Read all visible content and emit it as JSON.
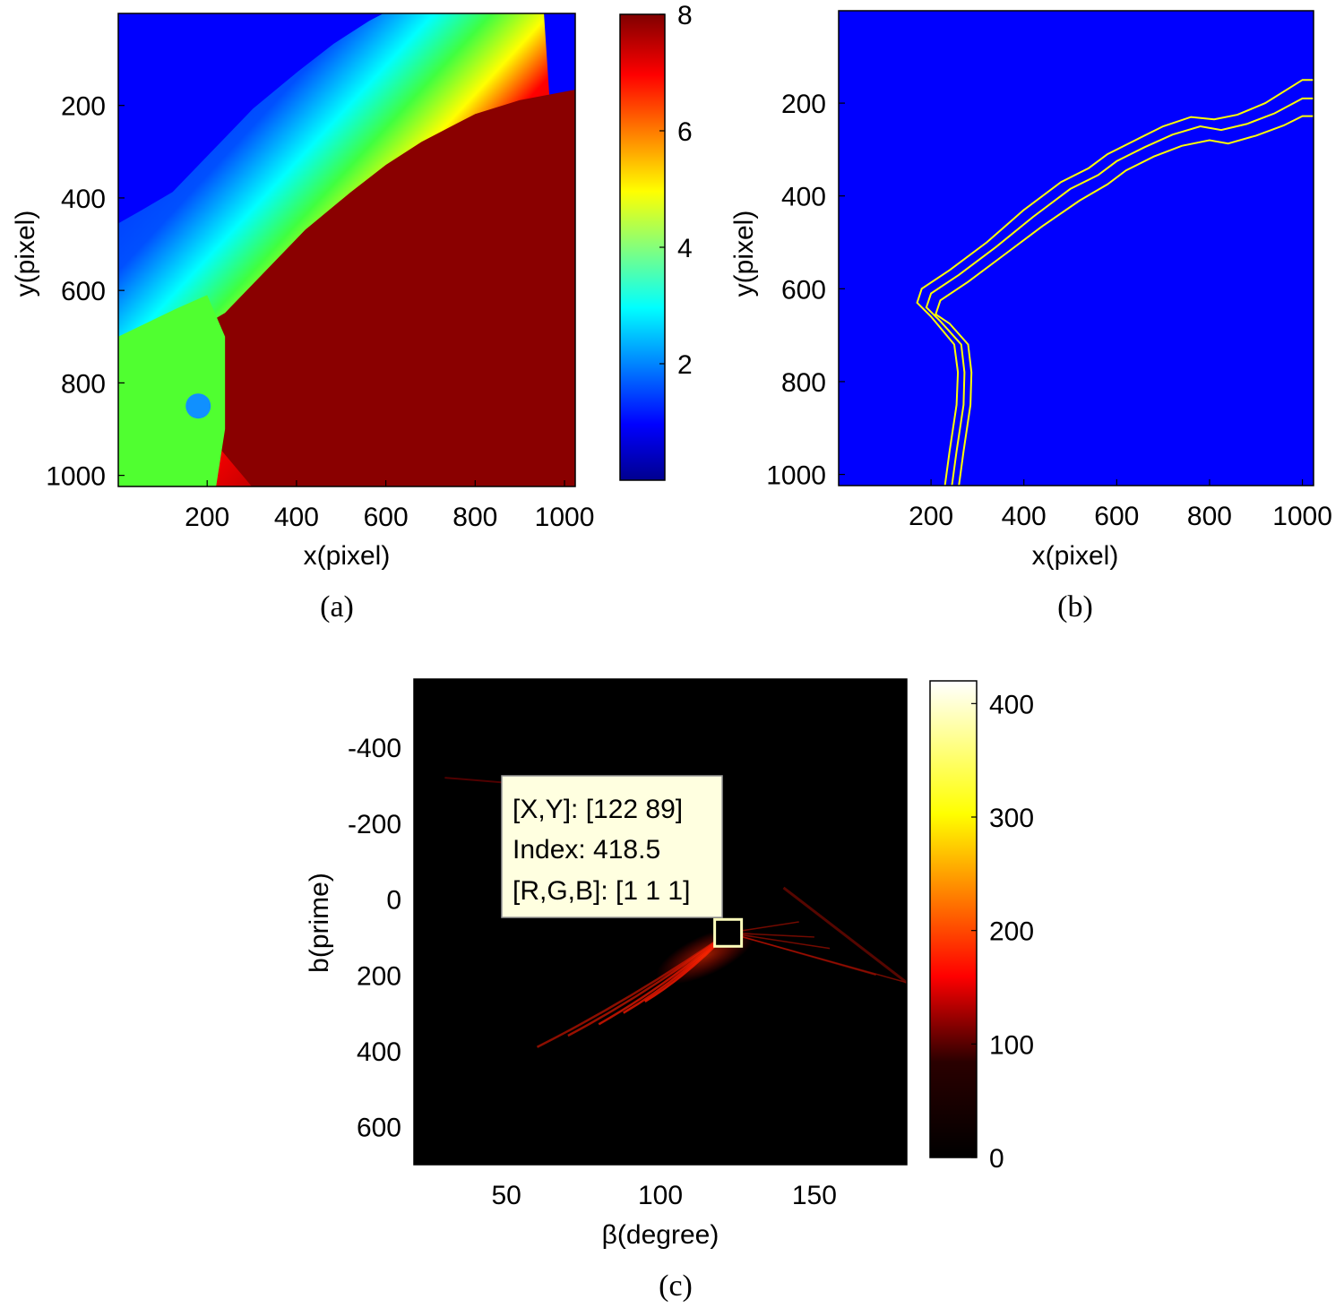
{
  "colors": {
    "jet": [
      "#00008f",
      "#0000ff",
      "#00ffff",
      "#ffff00",
      "#ff0000",
      "#800000"
    ],
    "hot": [
      "#000000",
      "#ff0000",
      "#ffff00",
      "#ffffff"
    ],
    "mask_bg": "#0000ff",
    "contour": "#ffff00",
    "tooltip_bg": "#ffffe0"
  },
  "chart_data": [
    {
      "id": "a",
      "type": "heatmap",
      "caption": "(a)",
      "xlabel": "x(pixel)",
      "ylabel": "y(pixel)",
      "xlim": [
        1,
        1024
      ],
      "ylim": [
        1,
        1024
      ],
      "y_reversed": true,
      "xticks": [
        200,
        400,
        600,
        800,
        1000
      ],
      "yticks": [
        200,
        400,
        600,
        800,
        1000
      ],
      "colormap": "jet",
      "clim": [
        0,
        8
      ],
      "colorbar_ticks": [
        2,
        4,
        6,
        8
      ],
      "description_of_field": "low values (~0.5-1) in upper-left, rising through a diagonal band to high values (~7-8) in lower-right",
      "boundary_line": [
        [
          20,
          700
        ],
        [
          130,
          640
        ],
        [
          200,
          600
        ],
        [
          280,
          520
        ],
        [
          380,
          420
        ],
        [
          480,
          340
        ],
        [
          560,
          280
        ],
        [
          640,
          230
        ],
        [
          760,
          170
        ],
        [
          860,
          140
        ],
        [
          1024,
          110
        ]
      ],
      "high_region_peak": 7.8,
      "low_spot": {
        "x": 180,
        "y": 850,
        "value": 2.5
      }
    },
    {
      "id": "b",
      "type": "line",
      "caption": "(b)",
      "xlabel": "x(pixel)",
      "ylabel": "y(pixel)",
      "xlim": [
        1,
        1024
      ],
      "ylim": [
        1,
        1024
      ],
      "y_reversed": true,
      "xticks": [
        200,
        400,
        600,
        800,
        1000
      ],
      "yticks": [
        200,
        400,
        600,
        800,
        1000
      ],
      "background": "blue",
      "series": [
        {
          "values": [
            [
              230,
              1024
            ],
            [
              240,
              950
            ],
            [
              255,
              850
            ],
            [
              258,
              780
            ],
            [
              250,
              720
            ],
            [
              200,
              660
            ],
            [
              170,
              630
            ],
            [
              180,
              600
            ],
            [
              240,
              560
            ],
            [
              320,
              500
            ],
            [
              400,
              430
            ],
            [
              480,
              370
            ],
            [
              540,
              340
            ],
            [
              580,
              310
            ],
            [
              640,
              280
            ],
            [
              700,
              250
            ],
            [
              760,
              230
            ],
            [
              810,
              235
            ],
            [
              860,
              225
            ],
            [
              920,
              200
            ],
            [
              1000,
              150
            ],
            [
              1024,
              150
            ]
          ]
        },
        {
          "values": [
            [
              245,
              1024
            ],
            [
              255,
              950
            ],
            [
              270,
              850
            ],
            [
              272,
              780
            ],
            [
              265,
              720
            ],
            [
              220,
              670
            ],
            [
              190,
              640
            ],
            [
              200,
              610
            ],
            [
              260,
              570
            ],
            [
              340,
              510
            ],
            [
              420,
              445
            ],
            [
              500,
              385
            ],
            [
              560,
              355
            ],
            [
              600,
              325
            ],
            [
              660,
              295
            ],
            [
              720,
              268
            ],
            [
              780,
              250
            ],
            [
              825,
              258
            ],
            [
              880,
              245
            ],
            [
              940,
              222
            ],
            [
              1000,
              190
            ],
            [
              1024,
              190
            ]
          ]
        },
        {
          "values": [
            [
              260,
              1024
            ],
            [
              270,
              950
            ],
            [
              285,
              850
            ],
            [
              287,
              780
            ],
            [
              280,
              720
            ],
            [
              240,
              675
            ],
            [
              210,
              655
            ],
            [
              220,
              625
            ],
            [
              280,
              585
            ],
            [
              360,
              525
            ],
            [
              440,
              465
            ],
            [
              520,
              410
            ],
            [
              580,
              375
            ],
            [
              620,
              345
            ],
            [
              680,
              315
            ],
            [
              740,
              292
            ],
            [
              800,
              280
            ],
            [
              840,
              287
            ],
            [
              900,
              270
            ],
            [
              960,
              248
            ],
            [
              1000,
              228
            ],
            [
              1024,
              228
            ]
          ]
        }
      ]
    },
    {
      "id": "c",
      "type": "heatmap",
      "caption": "(c)",
      "xlabel": "β(degree)",
      "ylabel": "b(prime)",
      "xlim": [
        20,
        180
      ],
      "ylim": [
        -580,
        700
      ],
      "y_reversed": true,
      "xticks": [
        50,
        100,
        150
      ],
      "yticks": [
        -400,
        -200,
        0,
        200,
        400,
        600
      ],
      "colormap": "hot",
      "clim": [
        0,
        420
      ],
      "colorbar_ticks": [
        0,
        100,
        200,
        300,
        400
      ],
      "peak": {
        "x": 122,
        "y": 89,
        "value": 418.5
      },
      "datatip": [
        "[X,Y]: [122 89]",
        "Index: 418.5",
        "[R,G,B]: [1 1 1]"
      ]
    }
  ]
}
